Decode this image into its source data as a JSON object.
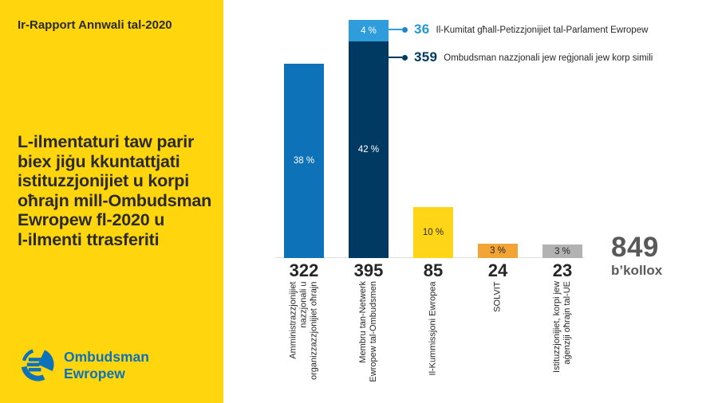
{
  "sidebar": {
    "background_color": "#ffd60d",
    "report_title": "Ir-Rapport Annwali tal-2020",
    "heading_lines": [
      "L-ilmentaturi taw parir",
      "biex jiġu kkuntattjati",
      "istituzzjonijiet u korpi",
      "oħrajn mill-Ombudsman",
      "Ewropew fl-2020 u",
      "l-ilmenti ttrasferiti"
    ],
    "logo": {
      "line1": "Ombudsman",
      "line2": "Ewropew",
      "color": "#0e72b8"
    }
  },
  "chart_data": {
    "type": "bar",
    "title": "",
    "categories": [
      "Amministrazzjonijiet nazzjonali u organizzazzjonijiet oħrajn",
      "Membru tan-Netwerk Ewropew tal-Ombudsmen",
      "Il-Kummissjoni Ewropea",
      "SOLVIT",
      "Istituzzjonijiet, korpi jew aġenziji oħrajn tal-UE"
    ],
    "values": [
      322,
      395,
      85,
      24,
      23
    ],
    "bars": [
      {
        "value_label": "322",
        "category_lines": [
          "Amministrazzjonijiet",
          "nazzjonali u",
          "organizzazzjonijiet oħrajn"
        ],
        "segments": [
          {
            "value": 322,
            "percent_label": "38 %",
            "color": "#0e72b8",
            "label_color": "#ffffff"
          }
        ]
      },
      {
        "value_label": "395",
        "category_lines": [
          "Membru tan-Netwerk",
          "Ewropew tal-Ombudsmen"
        ],
        "segments": [
          {
            "value": 36,
            "percent_label": "4 %",
            "color": "#2f9cdb",
            "label_color": "#ffffff"
          },
          {
            "value": 359,
            "percent_label": "42 %",
            "color": "#003a63",
            "label_color": "#ffffff"
          }
        ]
      },
      {
        "value_label": "85",
        "category_lines": [
          "Il-Kummissjoni Ewropea"
        ],
        "segments": [
          {
            "value": 85,
            "percent_label": "10 %",
            "color": "#ffd617",
            "label_color": "#262626"
          }
        ]
      },
      {
        "value_label": "24",
        "category_lines": [
          "SOLVIT"
        ],
        "segments": [
          {
            "value": 24,
            "percent_label": "3 %",
            "color": "#f2a434",
            "label_color": "#262626"
          }
        ]
      },
      {
        "value_label": "23",
        "category_lines": [
          "Istituzzjonijiet, korpi jew",
          "aġenziji oħrajn tal-UE"
        ],
        "segments": [
          {
            "value": 23,
            "percent_label": "3 %",
            "color": "#b2b2b2",
            "label_color": "#262626"
          }
        ]
      }
    ],
    "callouts": [
      {
        "value": "36",
        "label": "Il-Kumitat għall-Petizzjonijiet tal-Parlament Ewropew",
        "color": "#2596d4"
      },
      {
        "value": "359",
        "label": "Ombudsman nazzjonali jew reġjonali jew korp simili",
        "color": "#003a63"
      }
    ],
    "total": {
      "value": "849",
      "label": "b’kollox"
    },
    "legend_position": "top-right",
    "grid": false
  }
}
